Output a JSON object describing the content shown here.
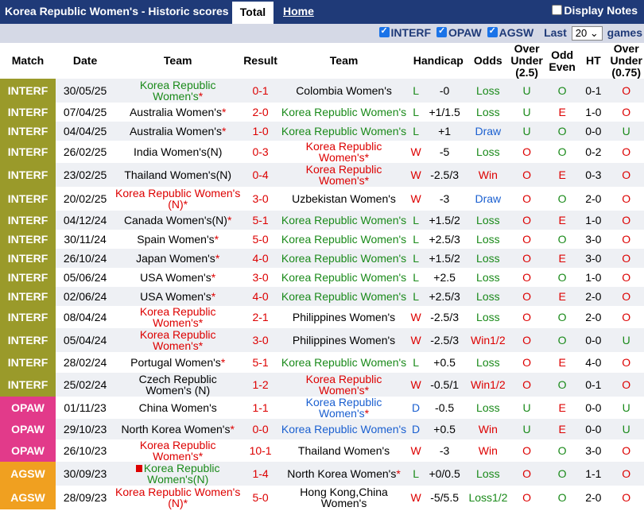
{
  "header": {
    "title": "Korea Republic Women's - Historic scores",
    "tab_total": "Total",
    "tab_home": "Home",
    "display_notes": "Display Notes"
  },
  "filters": {
    "interf": "INTERF",
    "opaw": "OPAW",
    "agsw": "AGSW",
    "last_label": "Last",
    "last_value": "20",
    "games_label": "games"
  },
  "columns": {
    "match": "Match",
    "date": "Date",
    "team1": "Team",
    "result": "Result",
    "team2": "Team",
    "handicap": "Handicap",
    "odds": "Odds",
    "over_under": "Over Under (2.5)",
    "odd_even": "Odd Even",
    "ht": "HT",
    "over_under2": "Over Under (0.75)"
  },
  "colors": {
    "interf": "#9a9a2a",
    "opaw": "#e23a8a",
    "agsw": "#f0a020",
    "header_bg": "#1f3a78"
  },
  "rows": [
    {
      "comp": "INTERF",
      "date": "30/05/25",
      "home": "Korea Republic Women's",
      "home_star": true,
      "home_color": "g",
      "score": "0-1",
      "away": "Colombia Women's",
      "away_star": false,
      "away_color": "h",
      "wl": "L",
      "hcp": "-0",
      "odds": "Loss",
      "ou": "U",
      "oe": "O",
      "ht": "0-1",
      "ou2": "O"
    },
    {
      "comp": "INTERF",
      "date": "07/04/25",
      "home": "Australia Women's",
      "home_star": true,
      "home_color": "h",
      "score": "2-0",
      "away": "Korea Republic Women's",
      "away_star": false,
      "away_color": "g",
      "wl": "L",
      "hcp": "+1/1.5",
      "odds": "Loss",
      "ou": "U",
      "oe": "E",
      "ht": "1-0",
      "ou2": "O"
    },
    {
      "comp": "INTERF",
      "date": "04/04/25",
      "home": "Australia Women's",
      "home_star": true,
      "home_color": "h",
      "score": "1-0",
      "away": "Korea Republic Women's",
      "away_star": false,
      "away_color": "g",
      "wl": "L",
      "hcp": "+1",
      "odds": "Draw",
      "ou": "U",
      "oe": "O",
      "ht": "0-0",
      "ou2": "U"
    },
    {
      "comp": "INTERF",
      "date": "26/02/25",
      "home": "India Women's(N)",
      "home_star": false,
      "home_color": "h",
      "score": "0-3",
      "away": "Korea Republic Women's",
      "away_star": true,
      "away_color": "r",
      "wl": "W",
      "hcp": "-5",
      "odds": "Loss",
      "ou": "O",
      "oe": "O",
      "ht": "0-2",
      "ou2": "O"
    },
    {
      "comp": "INTERF",
      "date": "23/02/25",
      "home": "Thailand Women's(N)",
      "home_star": false,
      "home_color": "h",
      "score": "0-4",
      "away": "Korea Republic Women's",
      "away_star": true,
      "away_color": "r",
      "wl": "W",
      "hcp": "-2.5/3",
      "odds": "Win",
      "ou": "O",
      "oe": "E",
      "ht": "0-3",
      "ou2": "O"
    },
    {
      "comp": "INTERF",
      "date": "20/02/25",
      "home": "Korea Republic Women's (N)",
      "home_star": true,
      "home_color": "r",
      "score": "3-0",
      "away": "Uzbekistan Women's",
      "away_star": false,
      "away_color": "h",
      "wl": "W",
      "hcp": "-3",
      "odds": "Draw",
      "ou": "O",
      "oe": "O",
      "ht": "2-0",
      "ou2": "O"
    },
    {
      "comp": "INTERF",
      "date": "04/12/24",
      "home": "Canada Women's(N)",
      "home_star": true,
      "home_color": "h",
      "score": "5-1",
      "away": "Korea Republic Women's",
      "away_star": false,
      "away_color": "g",
      "wl": "L",
      "hcp": "+1.5/2",
      "odds": "Loss",
      "ou": "O",
      "oe": "E",
      "ht": "1-0",
      "ou2": "O"
    },
    {
      "comp": "INTERF",
      "date": "30/11/24",
      "home": "Spain Women's",
      "home_star": true,
      "home_color": "h",
      "score": "5-0",
      "away": "Korea Republic Women's",
      "away_star": false,
      "away_color": "g",
      "wl": "L",
      "hcp": "+2.5/3",
      "odds": "Loss",
      "ou": "O",
      "oe": "O",
      "ht": "3-0",
      "ou2": "O"
    },
    {
      "comp": "INTERF",
      "date": "26/10/24",
      "home": "Japan Women's",
      "home_star": true,
      "home_color": "h",
      "score": "4-0",
      "away": "Korea Republic Women's",
      "away_star": false,
      "away_color": "g",
      "wl": "L",
      "hcp": "+1.5/2",
      "odds": "Loss",
      "ou": "O",
      "oe": "E",
      "ht": "3-0",
      "ou2": "O"
    },
    {
      "comp": "INTERF",
      "date": "05/06/24",
      "home": "USA Women's",
      "home_star": true,
      "home_color": "h",
      "score": "3-0",
      "away": "Korea Republic Women's",
      "away_star": false,
      "away_color": "g",
      "wl": "L",
      "hcp": "+2.5",
      "odds": "Loss",
      "ou": "O",
      "oe": "O",
      "ht": "1-0",
      "ou2": "O"
    },
    {
      "comp": "INTERF",
      "date": "02/06/24",
      "home": "USA Women's",
      "home_star": true,
      "home_color": "h",
      "score": "4-0",
      "away": "Korea Republic Women's",
      "away_star": false,
      "away_color": "g",
      "wl": "L",
      "hcp": "+2.5/3",
      "odds": "Loss",
      "ou": "O",
      "oe": "E",
      "ht": "2-0",
      "ou2": "O"
    },
    {
      "comp": "INTERF",
      "date": "08/04/24",
      "home": "Korea Republic Women's",
      "home_star": true,
      "home_color": "r",
      "score": "2-1",
      "away": "Philippines Women's",
      "away_star": false,
      "away_color": "h",
      "wl": "W",
      "hcp": "-2.5/3",
      "odds": "Loss",
      "ou": "O",
      "oe": "O",
      "ht": "2-0",
      "ou2": "O"
    },
    {
      "comp": "INTERF",
      "date": "05/04/24",
      "home": "Korea Republic Women's",
      "home_star": true,
      "home_color": "r",
      "score": "3-0",
      "away": "Philippines Women's",
      "away_star": false,
      "away_color": "h",
      "wl": "W",
      "hcp": "-2.5/3",
      "odds": "Win1/2",
      "ou": "O",
      "oe": "O",
      "ht": "0-0",
      "ou2": "U"
    },
    {
      "comp": "INTERF",
      "date": "28/02/24",
      "home": "Portugal Women's",
      "home_star": true,
      "home_color": "h",
      "score": "5-1",
      "away": "Korea Republic Women's",
      "away_star": false,
      "away_color": "g",
      "wl": "L",
      "hcp": "+0.5",
      "odds": "Loss",
      "ou": "O",
      "oe": "E",
      "ht": "4-0",
      "ou2": "O"
    },
    {
      "comp": "INTERF",
      "date": "25/02/24",
      "home": "Czech Republic Women's (N)",
      "home_star": false,
      "home_color": "h",
      "score": "1-2",
      "away": "Korea Republic Women's",
      "away_star": true,
      "away_color": "r",
      "wl": "W",
      "hcp": "-0.5/1",
      "odds": "Win1/2",
      "ou": "O",
      "oe": "O",
      "ht": "0-1",
      "ou2": "O"
    },
    {
      "comp": "OPAW",
      "date": "01/11/23",
      "home": "China Women's",
      "home_star": false,
      "home_color": "h",
      "score": "1-1",
      "away": "Korea Republic Women's",
      "away_star": true,
      "away_color": "b",
      "wl": "D",
      "hcp": "-0.5",
      "odds": "Loss",
      "ou": "U",
      "oe": "E",
      "ht": "0-0",
      "ou2": "U"
    },
    {
      "comp": "OPAW",
      "date": "29/10/23",
      "home": "North Korea Women's",
      "home_star": true,
      "home_color": "h",
      "score": "0-0",
      "away": "Korea Republic Women's",
      "away_star": false,
      "away_color": "b",
      "wl": "D",
      "hcp": "+0.5",
      "odds": "Win",
      "ou": "U",
      "oe": "E",
      "ht": "0-0",
      "ou2": "U"
    },
    {
      "comp": "OPAW",
      "date": "26/10/23",
      "home": "Korea Republic Women's",
      "home_star": true,
      "home_color": "r",
      "score": "10-1",
      "away": "Thailand Women's",
      "away_star": false,
      "away_color": "h",
      "wl": "W",
      "hcp": "-3",
      "odds": "Win",
      "ou": "O",
      "oe": "O",
      "ht": "3-0",
      "ou2": "O"
    },
    {
      "comp": "AGSW",
      "date": "30/09/23",
      "home": "Korea Republic Women's(N)",
      "home_star": false,
      "home_flag": true,
      "home_color": "g",
      "score": "1-4",
      "away": "North Korea Women's",
      "away_star": true,
      "away_color": "h",
      "wl": "L",
      "hcp": "+0/0.5",
      "odds": "Loss",
      "ou": "O",
      "oe": "O",
      "ht": "1-1",
      "ou2": "O"
    },
    {
      "comp": "AGSW",
      "date": "28/09/23",
      "home": "Korea Republic Women's (N)",
      "home_star": true,
      "home_color": "r",
      "score": "5-0",
      "away": "Hong Kong,China Women's",
      "away_star": false,
      "away_color": "h",
      "wl": "W",
      "hcp": "-5/5.5",
      "odds": "Loss1/2",
      "ou": "O",
      "oe": "O",
      "ht": "2-0",
      "ou2": "O"
    }
  ]
}
